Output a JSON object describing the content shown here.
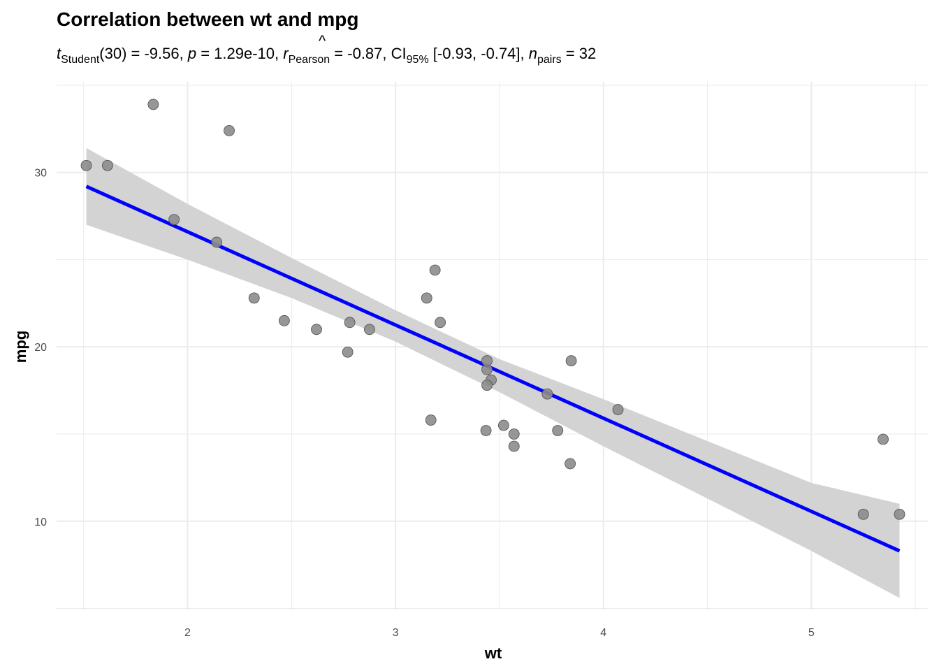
{
  "chart_data": {
    "type": "scatter",
    "title": "Correlation between wt and mpg",
    "subtitle": {
      "t_symbol": "t",
      "t_sub": "Student",
      "t_rest": "(30) = -9.56, ",
      "p_symbol": "p",
      "p_rest": " = 1.29e-10, ",
      "r_symbol": "r",
      "r_hat": "^",
      "r_sub": "Pearson",
      "r_rest": " = -0.87, CI",
      "ci_sub": "95%",
      "ci_rest": " [-0.93, -0.74], ",
      "n_symbol": "n",
      "n_sub": "pairs",
      "n_rest": " = 32"
    },
    "xlabel": "wt",
    "ylabel": "mpg",
    "xlim": [
      1.37,
      5.56
    ],
    "ylim": [
      4.9,
      35.2
    ],
    "x_ticks": [
      2,
      3,
      4,
      5
    ],
    "y_ticks": [
      10,
      20,
      30
    ],
    "x_tick_labels": [
      "2",
      "3",
      "4",
      "5"
    ],
    "y_tick_labels": [
      "10",
      "20",
      "30"
    ],
    "grid": true,
    "colors": {
      "points_fill": "#8c8c8c",
      "points_stroke": "#4d4d4d",
      "line": "#0000ff",
      "band": "#d3d3d3",
      "grid": "#ebebeb"
    },
    "points": [
      {
        "x": 2.62,
        "y": 21.0
      },
      {
        "x": 2.875,
        "y": 21.0
      },
      {
        "x": 2.32,
        "y": 22.8
      },
      {
        "x": 3.215,
        "y": 21.4
      },
      {
        "x": 3.44,
        "y": 18.7
      },
      {
        "x": 3.46,
        "y": 18.1
      },
      {
        "x": 3.57,
        "y": 14.3
      },
      {
        "x": 3.19,
        "y": 24.4
      },
      {
        "x": 3.15,
        "y": 22.8
      },
      {
        "x": 3.44,
        "y": 19.2
      },
      {
        "x": 3.44,
        "y": 17.8
      },
      {
        "x": 4.07,
        "y": 16.4
      },
      {
        "x": 3.73,
        "y": 17.3
      },
      {
        "x": 3.78,
        "y": 15.2
      },
      {
        "x": 5.25,
        "y": 10.4
      },
      {
        "x": 5.424,
        "y": 10.4
      },
      {
        "x": 5.345,
        "y": 14.7
      },
      {
        "x": 2.2,
        "y": 32.4
      },
      {
        "x": 1.615,
        "y": 30.4
      },
      {
        "x": 1.835,
        "y": 33.9
      },
      {
        "x": 2.465,
        "y": 21.5
      },
      {
        "x": 3.52,
        "y": 15.5
      },
      {
        "x": 3.435,
        "y": 15.2
      },
      {
        "x": 3.84,
        "y": 13.3
      },
      {
        "x": 3.845,
        "y": 19.2
      },
      {
        "x": 1.935,
        "y": 27.3
      },
      {
        "x": 2.14,
        "y": 26.0
      },
      {
        "x": 1.513,
        "y": 30.4
      },
      {
        "x": 3.17,
        "y": 15.8
      },
      {
        "x": 2.77,
        "y": 19.7
      },
      {
        "x": 3.57,
        "y": 15.0
      },
      {
        "x": 2.78,
        "y": 21.4
      }
    ],
    "regression": {
      "method": "lm",
      "intercept": 37.285,
      "slope": -5.344,
      "ci_band": [
        {
          "x": 1.513,
          "lower": 27.0,
          "upper": 31.4
        },
        {
          "x": 2.0,
          "lower": 25.0,
          "upper": 28.2
        },
        {
          "x": 2.5,
          "lower": 22.8,
          "upper": 25.1
        },
        {
          "x": 3.0,
          "lower": 20.3,
          "upper": 22.1
        },
        {
          "x": 3.5,
          "lower": 17.4,
          "upper": 19.3
        },
        {
          "x": 4.0,
          "lower": 14.3,
          "upper": 17.0
        },
        {
          "x": 4.5,
          "lower": 11.3,
          "upper": 14.6
        },
        {
          "x": 5.0,
          "lower": 8.3,
          "upper": 12.2
        },
        {
          "x": 5.424,
          "lower": 5.6,
          "upper": 11.0
        }
      ]
    }
  }
}
